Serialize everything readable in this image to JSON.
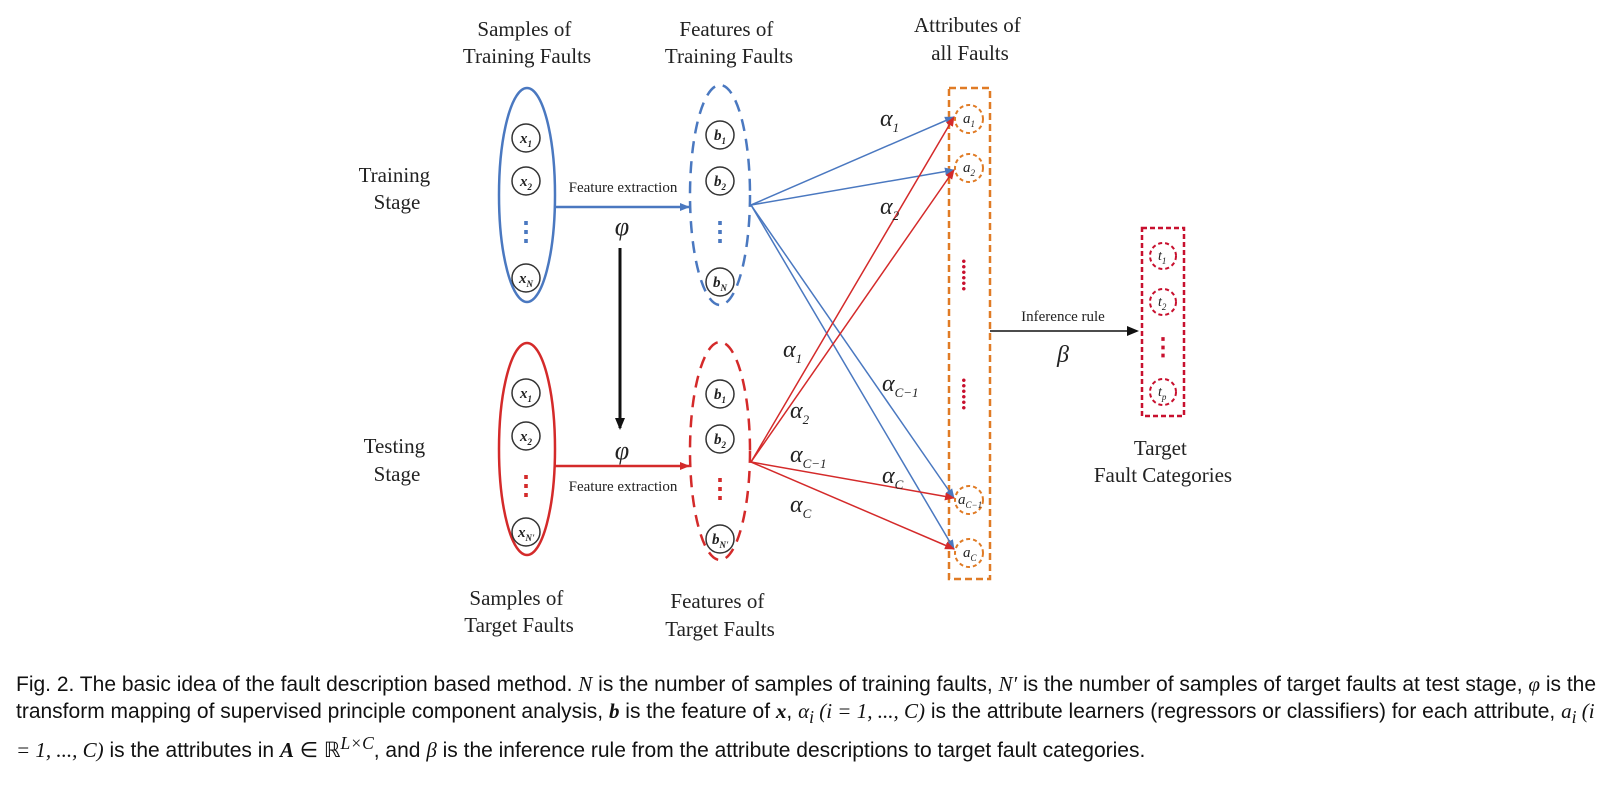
{
  "labels": {
    "samples_training": [
      "Samples of",
      "Training Faults"
    ],
    "features_training": [
      "Features of",
      "Training Faults"
    ],
    "attributes_all": [
      "Attributes of",
      "all Faults"
    ],
    "training_stage": [
      "Training",
      "Stage"
    ],
    "testing_stage": [
      "Testing",
      "Stage"
    ],
    "samples_target": [
      "Samples of",
      "Target Faults"
    ],
    "features_target": [
      "Features of",
      "Target Faults"
    ],
    "target_categories": [
      "Target",
      "Fault Categories"
    ],
    "feature_extraction": "Feature extraction",
    "inference_rule": "Inference rule"
  },
  "symbols": {
    "phi": "φ",
    "beta": "β",
    "alpha": "α",
    "dots": "⋮",
    "hdots": "......"
  },
  "nodes": {
    "train_samples": [
      {
        "base": "x",
        "sub": "1"
      },
      {
        "base": "x",
        "sub": "2"
      },
      {
        "base": "x",
        "sub": "N"
      }
    ],
    "train_features": [
      {
        "base": "b",
        "sub": "1"
      },
      {
        "base": "b",
        "sub": "2"
      },
      {
        "base": "b",
        "sub": "N"
      }
    ],
    "test_samples": [
      {
        "base": "x",
        "sub": "1"
      },
      {
        "base": "x",
        "sub": "2"
      },
      {
        "base": "x",
        "sub": "N'"
      }
    ],
    "test_features": [
      {
        "base": "b",
        "sub": "1"
      },
      {
        "base": "b",
        "sub": "2"
      },
      {
        "base": "b",
        "sub": "N'"
      }
    ],
    "attributes": [
      {
        "base": "a",
        "sub": "1"
      },
      {
        "base": "a",
        "sub": "2"
      },
      {
        "base": "a",
        "sub": "C−1"
      },
      {
        "base": "a",
        "sub": "C"
      }
    ],
    "targets": [
      {
        "base": "t",
        "sub": "1"
      },
      {
        "base": "t",
        "sub": "2"
      },
      {
        "base": "t",
        "sub": "p"
      }
    ]
  },
  "edge_labels": {
    "blue": [
      {
        "sub": "1"
      },
      {
        "sub": "2"
      },
      {
        "sub": "C−1"
      },
      {
        "sub": "C"
      }
    ],
    "red": [
      {
        "sub": "1"
      },
      {
        "sub": "2"
      },
      {
        "sub": "C−1"
      },
      {
        "sub": "C"
      }
    ]
  },
  "colors": {
    "blue": "#4a78c0",
    "red": "#d42a2a",
    "orange": "#e07b25",
    "dark_red": "#c8102e",
    "black": "#111111"
  },
  "caption": {
    "part1": "Fig. 2.  The basic idea of the fault description based method. ",
    "N": "N",
    "part2": " is the number of samples of training faults, ",
    "Nprime": "N′",
    "part3": " is the number of samples of target faults at test stage, ",
    "phi": "φ",
    "part4": " is the transform mapping of supervised principle component analysis, ",
    "b": "b",
    "part5": " is the feature of ",
    "x": "x",
    "part6": ", ",
    "alpha_i": "α",
    "alpha_sub": "i",
    "range1": " (i = 1, ..., C)",
    "part7": " is the attribute learners (regressors or classifiers) for each attribute, ",
    "a_i": "a",
    "a_sub": "i",
    "range2": " (i = 1, ..., C)",
    "part8": " is the attributes in ",
    "A": "A",
    "in_R": " ∈ ℝ",
    "LxC": "L×C",
    "part9": ", and ",
    "beta": "β",
    "part10": " is the inference rule from the attribute descriptions to target fault categories."
  }
}
